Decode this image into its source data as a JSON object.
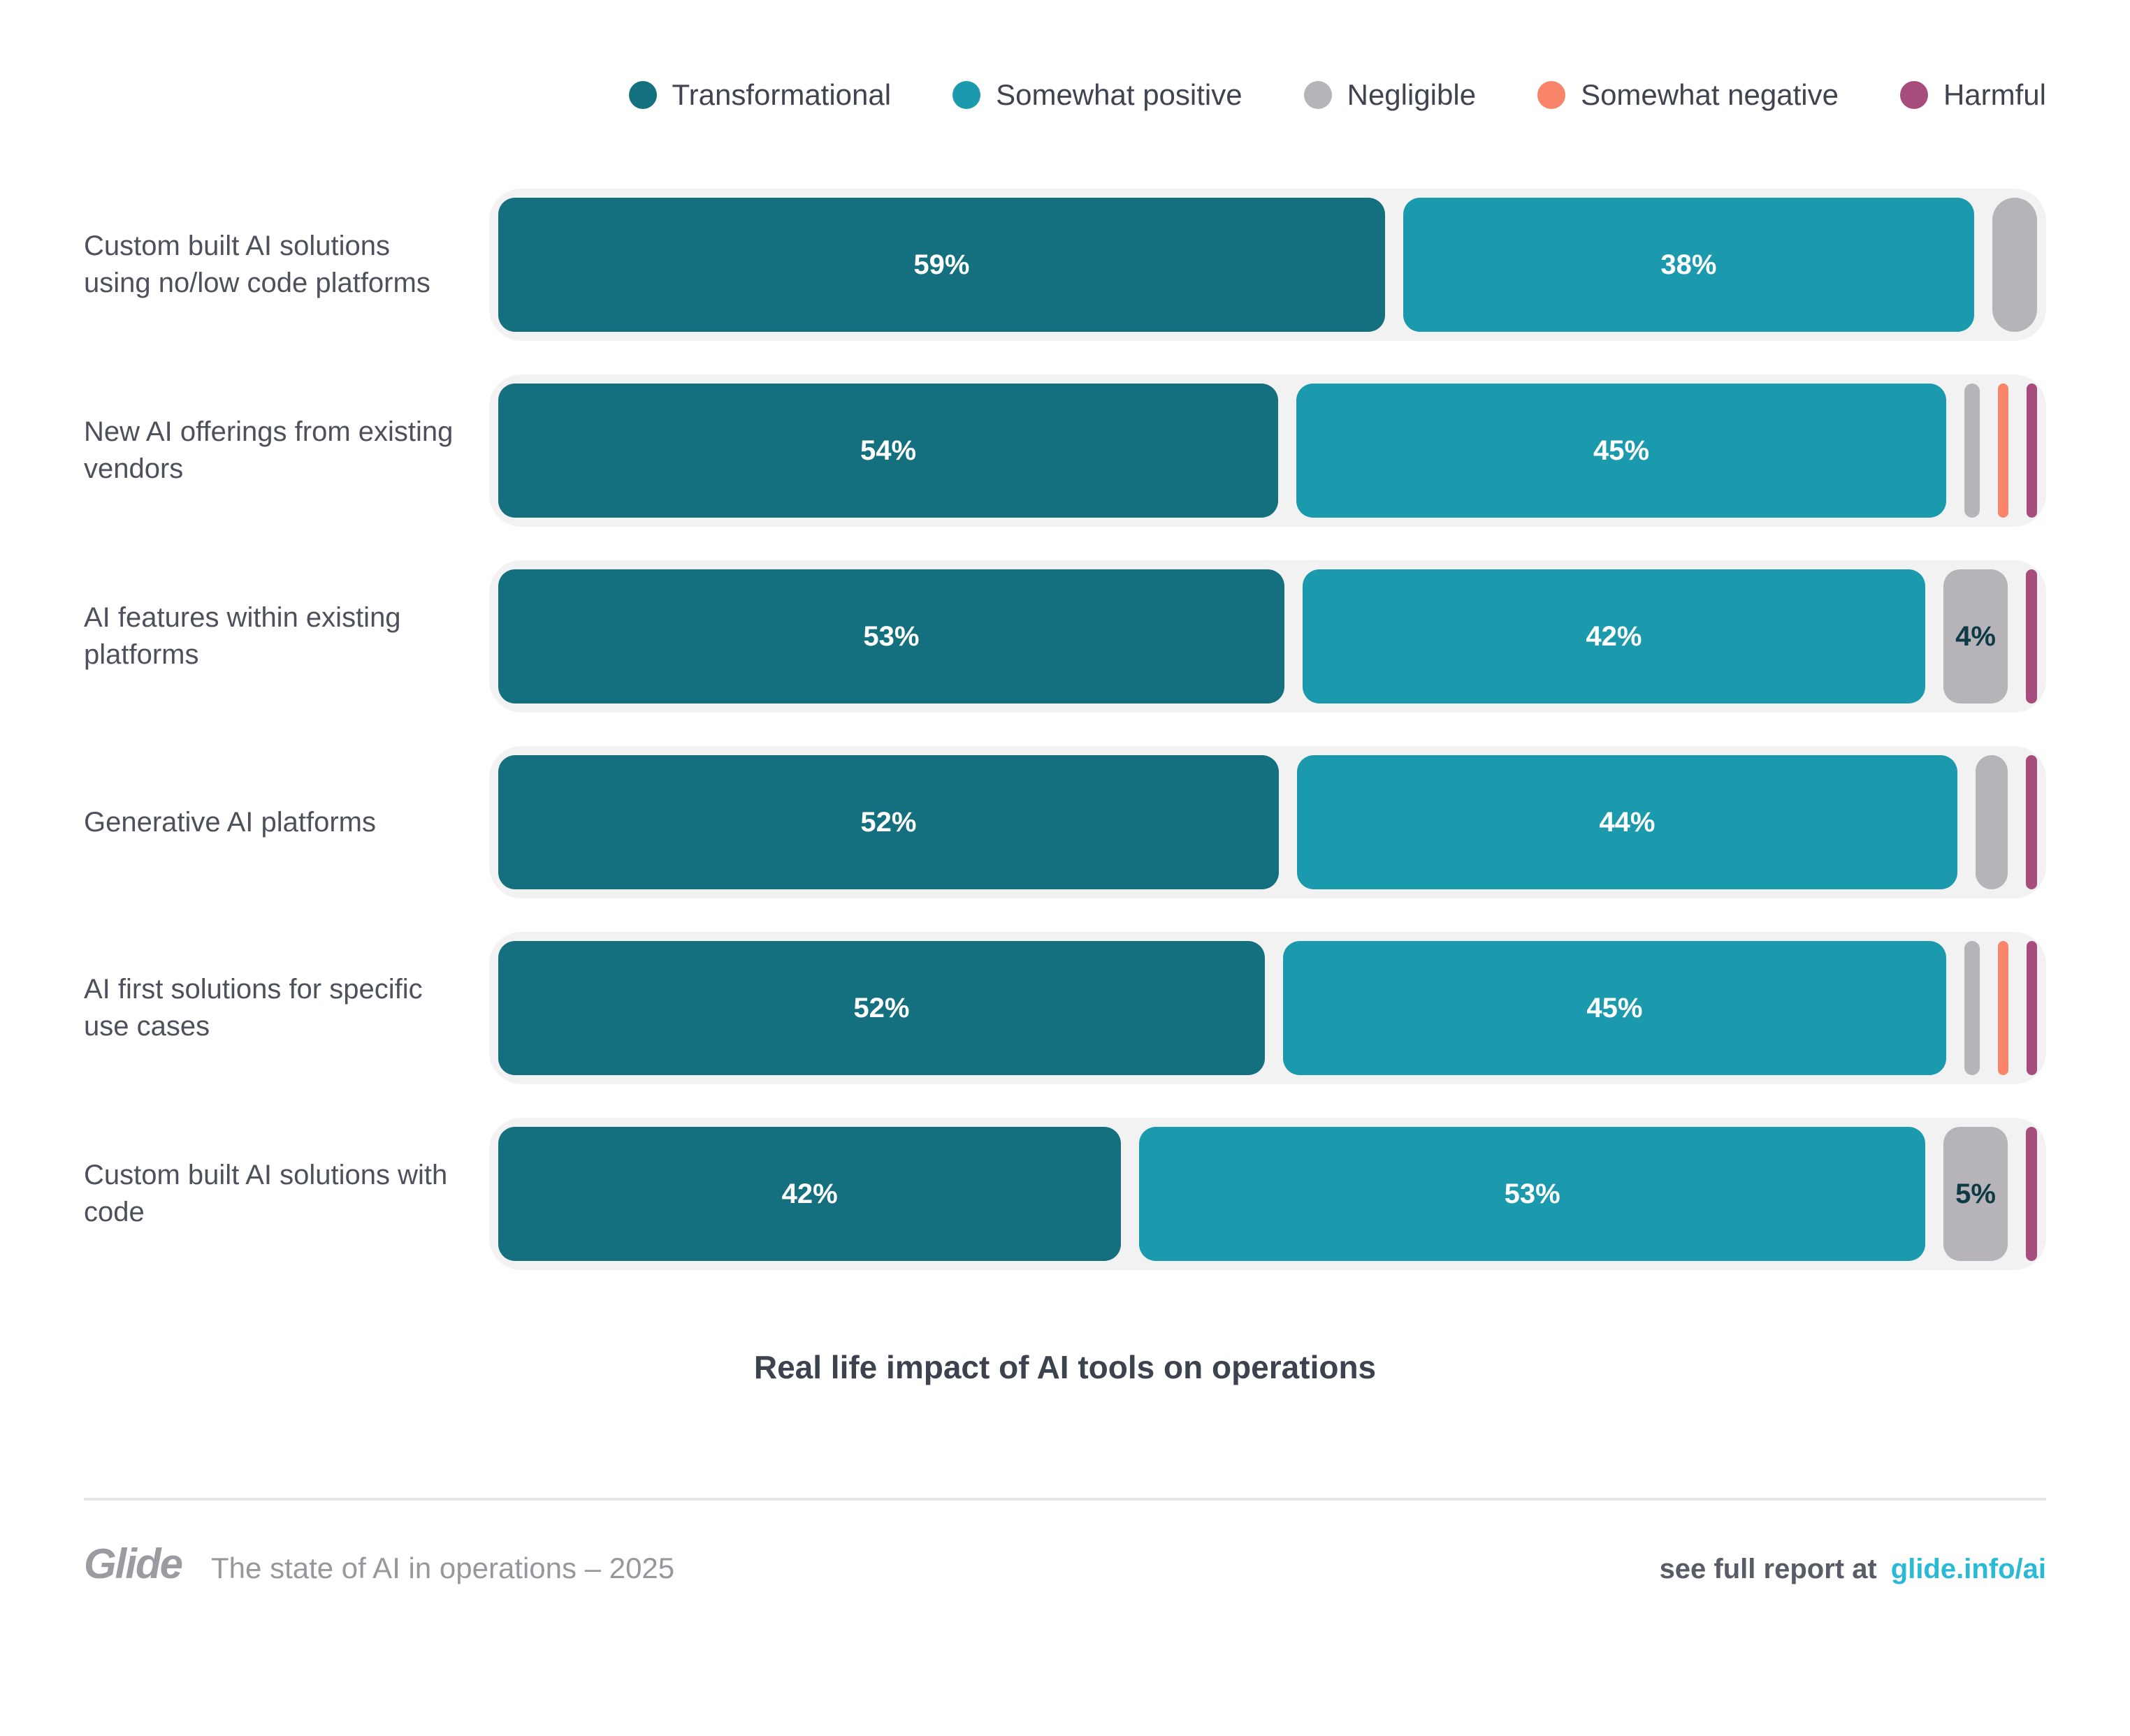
{
  "palette": {
    "transformational": "#146f7e",
    "somewhat_positive": "#1b9aad",
    "negligible": "#b6b3b9",
    "somewhat_negative": "#f8846a",
    "harmful": "#a64d7e",
    "track": "#f2f2f3",
    "negligible_label_text": "#0e3a46",
    "link": "#2bbad5"
  },
  "legend": {
    "items": [
      {
        "key": "transformational",
        "label": "Transformational"
      },
      {
        "key": "somewhat_positive",
        "label": "Somewhat positive"
      },
      {
        "key": "negligible",
        "label": "Negligible"
      },
      {
        "key": "somewhat_negative",
        "label": "Somewhat negative"
      },
      {
        "key": "harmful",
        "label": "Harmful"
      }
    ]
  },
  "chart": {
    "title": "Real life impact of AI tools on operations",
    "rows": [
      {
        "label": "Custom built AI solutions using no/low code platforms",
        "segments": [
          {
            "cat": "transformational",
            "grow": 59,
            "label": "59%"
          },
          {
            "cat": "somewhat_positive",
            "grow": 38,
            "label": "38%"
          },
          {
            "cat": "negligible",
            "width": 64,
            "label": ""
          }
        ]
      },
      {
        "label": "New AI offerings from existing vendors",
        "segments": [
          {
            "cat": "transformational",
            "grow": 54,
            "label": "54%"
          },
          {
            "cat": "somewhat_positive",
            "grow": 45,
            "label": "45%"
          },
          {
            "cat": "negligible",
            "width": 22,
            "label": ""
          },
          {
            "cat": "somewhat_negative",
            "width": 15,
            "label": ""
          },
          {
            "cat": "harmful",
            "width": 15,
            "label": ""
          }
        ]
      },
      {
        "label": "AI features within existing platforms",
        "segments": [
          {
            "cat": "transformational",
            "grow": 53,
            "label": "53%"
          },
          {
            "cat": "somewhat_positive",
            "grow": 42,
            "label": "42%"
          },
          {
            "cat": "negligible",
            "width": 92,
            "label": "4%"
          },
          {
            "cat": "harmful",
            "width": 16,
            "label": ""
          }
        ]
      },
      {
        "label": "Generative AI platforms",
        "segments": [
          {
            "cat": "transformational",
            "grow": 52,
            "label": "52%"
          },
          {
            "cat": "somewhat_positive",
            "grow": 44,
            "label": "44%"
          },
          {
            "cat": "negligible",
            "width": 46,
            "label": ""
          },
          {
            "cat": "harmful",
            "width": 16,
            "label": ""
          }
        ]
      },
      {
        "label": "AI first solutions for specific use cases",
        "segments": [
          {
            "cat": "transformational",
            "grow": 52,
            "label": "52%"
          },
          {
            "cat": "somewhat_positive",
            "grow": 45,
            "label": "45%"
          },
          {
            "cat": "negligible",
            "width": 22,
            "label": ""
          },
          {
            "cat": "somewhat_negative",
            "width": 15,
            "label": ""
          },
          {
            "cat": "harmful",
            "width": 15,
            "label": ""
          }
        ]
      },
      {
        "label": "Custom built AI solutions with code",
        "segments": [
          {
            "cat": "transformational",
            "grow": 42,
            "label": "42%"
          },
          {
            "cat": "somewhat_positive",
            "grow": 53,
            "label": "53%"
          },
          {
            "cat": "negligible",
            "width": 92,
            "label": "5%"
          },
          {
            "cat": "harmful",
            "width": 16,
            "label": ""
          }
        ]
      }
    ]
  },
  "chart_data": {
    "type": "bar",
    "subtype": "horizontal_stacked_100pct",
    "title": "Real life impact of AI tools on operations",
    "categories": [
      "Custom built AI solutions using no/low code platforms",
      "New AI offerings from existing vendors",
      "AI features within existing platforms",
      "Generative AI platforms",
      "AI first solutions for specific use cases",
      "Custom built AI solutions with code"
    ],
    "series": [
      {
        "name": "Transformational",
        "values": [
          59,
          54,
          53,
          52,
          52,
          42
        ]
      },
      {
        "name": "Somewhat positive",
        "values": [
          38,
          45,
          42,
          44,
          45,
          53
        ]
      },
      {
        "name": "Negligible",
        "values": [
          3,
          1,
          4,
          2,
          1,
          5
        ]
      },
      {
        "name": "Somewhat negative",
        "values": [
          0,
          0.5,
          0,
          0,
          0.5,
          0
        ]
      },
      {
        "name": "Harmful",
        "values": [
          0,
          0.5,
          1,
          0.5,
          0.5,
          0.5
        ]
      }
    ],
    "data_labels_shown": [
      [
        "59%",
        "38%"
      ],
      [
        "54%",
        "45%"
      ],
      [
        "53%",
        "42%",
        "4%"
      ],
      [
        "52%",
        "44%"
      ],
      [
        "52%",
        "45%"
      ],
      [
        "42%",
        "53%",
        "5%"
      ]
    ],
    "legend_position": "top",
    "axis_labels": "none",
    "grid": false,
    "xlim": [
      0,
      100
    ]
  },
  "footer": {
    "brand": "Glide",
    "tagline": "The state of AI in operations – 2025",
    "cta_text": "see full report at",
    "cta_link": "glide.info/ai"
  }
}
